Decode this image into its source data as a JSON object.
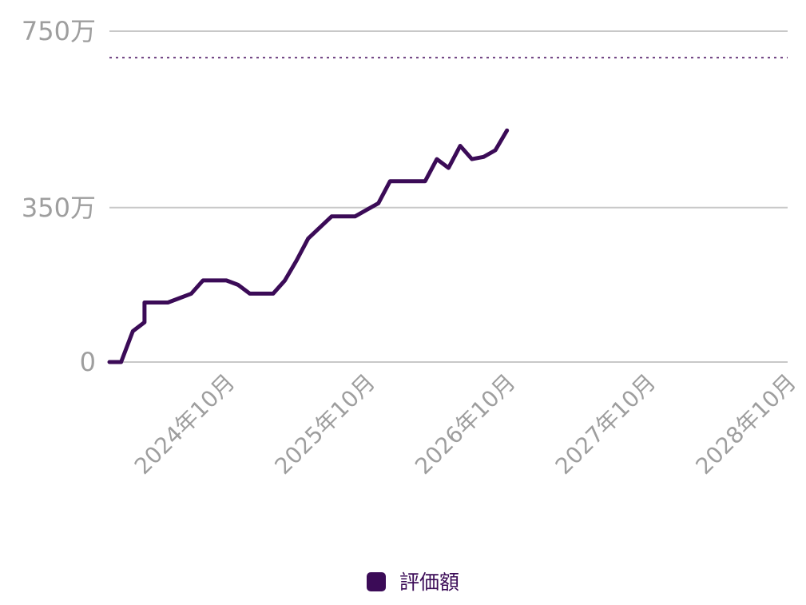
{
  "chart_data": {
    "type": "line",
    "title": "",
    "xlabel": "",
    "ylabel": "",
    "x_tick_labels": [
      "2024年10月",
      "2025年10月",
      "2026年10月",
      "2027年10月",
      "2028年10月"
    ],
    "x_tick_dates": [
      "2024-10",
      "2025-10",
      "2026-10",
      "2027-10",
      "2028-10"
    ],
    "y_tick_labels": [
      "0",
      "350万",
      "750万"
    ],
    "y_tick_values": [
      0,
      3500000,
      7500000
    ],
    "ylim": [
      0,
      7500000
    ],
    "xlim": [
      "2023-12",
      "2028-10"
    ],
    "grid": true,
    "legend_position": "bottom-center",
    "colors": {
      "series": "#3b0b57",
      "grid": "#c8c8c8",
      "tick_text": "#9e9e9e",
      "target": "#6b3d7f"
    },
    "reference_line": {
      "style": "dotted",
      "y": 6900000
    },
    "series": [
      {
        "name": "評価額",
        "points": [
          {
            "x": "2023-12",
            "y": 0
          },
          {
            "x": "2024-01",
            "y": 0
          },
          {
            "x": "2024-02",
            "y": 700000
          },
          {
            "x": "2024-03",
            "y": 900000
          },
          {
            "x": "2024-03",
            "y": 1350000
          },
          {
            "x": "2024-04",
            "y": 1350000
          },
          {
            "x": "2024-05",
            "y": 1350000
          },
          {
            "x": "2024-06",
            "y": 1450000
          },
          {
            "x": "2024-07",
            "y": 1550000
          },
          {
            "x": "2024-08",
            "y": 1850000
          },
          {
            "x": "2024-09",
            "y": 1850000
          },
          {
            "x": "2024-10",
            "y": 1850000
          },
          {
            "x": "2024-11",
            "y": 1750000
          },
          {
            "x": "2024-12",
            "y": 1550000
          },
          {
            "x": "2025-01",
            "y": 1550000
          },
          {
            "x": "2025-02",
            "y": 1550000
          },
          {
            "x": "2025-03",
            "y": 1850000
          },
          {
            "x": "2025-04",
            "y": 2300000
          },
          {
            "x": "2025-05",
            "y": 2800000
          },
          {
            "x": "2025-06",
            "y": 3050000
          },
          {
            "x": "2025-07",
            "y": 3300000
          },
          {
            "x": "2025-08",
            "y": 3300000
          },
          {
            "x": "2025-09",
            "y": 3300000
          },
          {
            "x": "2025-10",
            "y": 3450000
          },
          {
            "x": "2025-11",
            "y": 3600000
          },
          {
            "x": "2025-12",
            "y": 4100000
          },
          {
            "x": "2026-01",
            "y": 4100000
          },
          {
            "x": "2026-02",
            "y": 4100000
          },
          {
            "x": "2026-03",
            "y": 4100000
          },
          {
            "x": "2026-04",
            "y": 4600000
          },
          {
            "x": "2026-05",
            "y": 4400000
          },
          {
            "x": "2026-06",
            "y": 4900000
          },
          {
            "x": "2026-07",
            "y": 4600000
          },
          {
            "x": "2026-08",
            "y": 4650000
          },
          {
            "x": "2026-09",
            "y": 4800000
          },
          {
            "x": "2026-10",
            "y": 5250000
          }
        ]
      }
    ]
  }
}
